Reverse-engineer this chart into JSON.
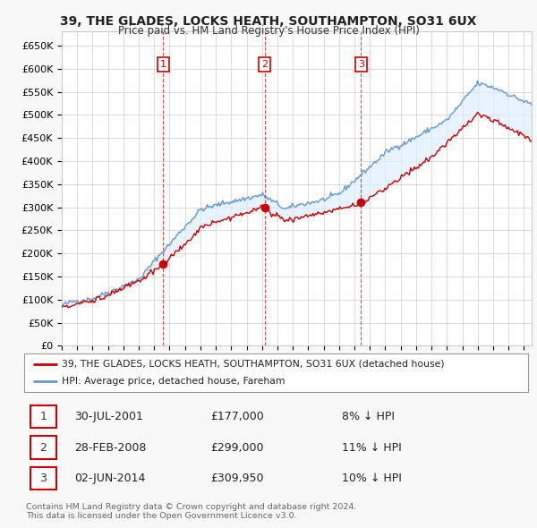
{
  "title": "39, THE GLADES, LOCKS HEATH, SOUTHAMPTON, SO31 6UX",
  "subtitle": "Price paid vs. HM Land Registry's House Price Index (HPI)",
  "ylim": [
    0,
    680000
  ],
  "yticks": [
    0,
    50000,
    100000,
    150000,
    200000,
    250000,
    300000,
    350000,
    400000,
    450000,
    500000,
    550000,
    600000,
    650000
  ],
  "ytick_labels": [
    "£0",
    "£50K",
    "£100K",
    "£150K",
    "£200K",
    "£250K",
    "£300K",
    "£350K",
    "£400K",
    "£450K",
    "£500K",
    "£550K",
    "£600K",
    "£650K"
  ],
  "background_color": "#f8f8f8",
  "plot_background": "#ffffff",
  "grid_color": "#cccccc",
  "sale_color": "#cc0000",
  "hpi_color": "#6699cc",
  "hpi_fill_color": "#ddeeff",
  "transactions": [
    {
      "label": "1",
      "date": "30-JUL-2001",
      "price": 177000,
      "pct": "8%",
      "x": 2001.58
    },
    {
      "label": "2",
      "date": "28-FEB-2008",
      "price": 299000,
      "pct": "11%",
      "x": 2008.17
    },
    {
      "label": "3",
      "date": "02-JUN-2014",
      "price": 309950,
      "pct": "10%",
      "x": 2014.42
    }
  ],
  "legend_sale": "39, THE GLADES, LOCKS HEATH, SOUTHAMPTON, SO31 6UX (detached house)",
  "legend_hpi": "HPI: Average price, detached house, Fareham",
  "footer1": "Contains HM Land Registry data © Crown copyright and database right 2024.",
  "footer2": "This data is licensed under the Open Government Licence v3.0.",
  "xlim_start": 1995.0,
  "xlim_end": 2025.5
}
